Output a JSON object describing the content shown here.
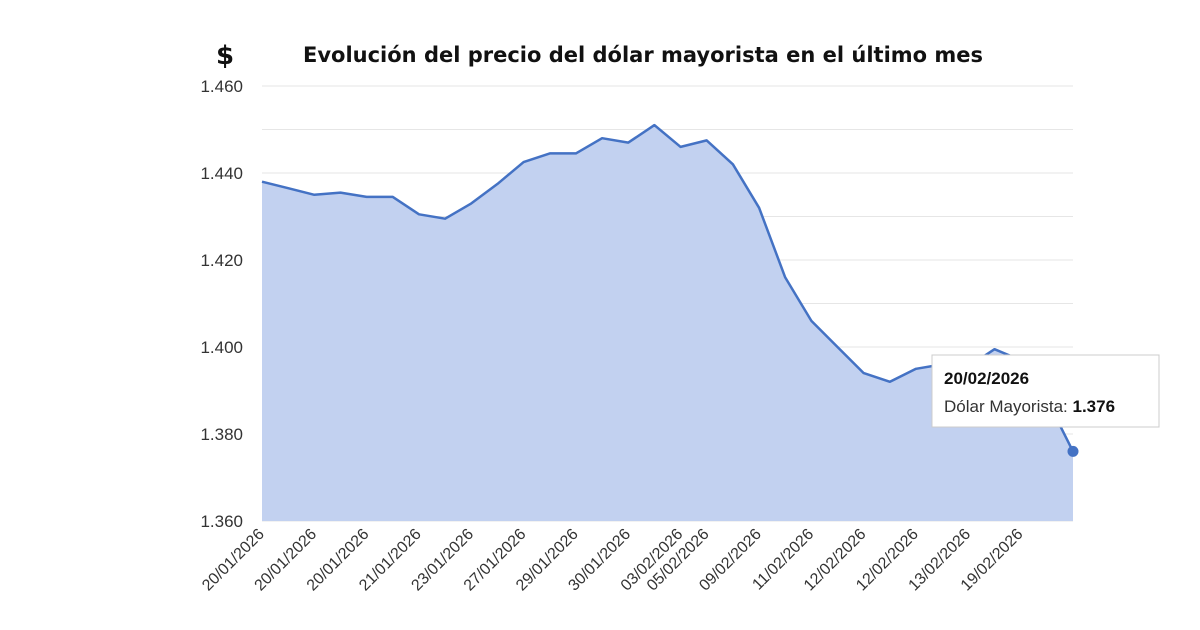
{
  "header": {
    "currency_symbol": "$",
    "title": "Evolución del precio del dólar mayorista en el último mes"
  },
  "colors": {
    "line": "#4472c4",
    "area": "#c2d1f0",
    "grid": "#e6e6e6",
    "tooltip_border": "#cccccc"
  },
  "chart_data": {
    "type": "area",
    "title": "Evolución del precio del dólar mayorista en el último mes",
    "xlabel": "",
    "ylabel": "",
    "ylim": [
      1360,
      1460
    ],
    "y_ticks": [
      1360,
      1380,
      1400,
      1420,
      1440,
      1460
    ],
    "y_tick_labels": [
      "1.360",
      "1.380",
      "1.400",
      "1.420",
      "1.440",
      "1.460"
    ],
    "x_tick_labels": [
      "20/01/2026",
      "20/01/2026",
      "20/01/2026",
      "21/01/2026",
      "23/01/2026",
      "27/01/2026",
      "29/01/2026",
      "30/01/2026",
      "03/02/2026",
      "05/02/2026",
      "09/02/2026",
      "11/02/2026",
      "12/02/2026",
      "12/02/2026",
      "13/02/2026",
      "19/02/2026"
    ],
    "grid": true,
    "legend": "none",
    "series": [
      {
        "name": "Dólar Mayorista",
        "values": [
          1438,
          1436.5,
          1435,
          1435.5,
          1434.5,
          1434.5,
          1430.5,
          1429.5,
          1433,
          1437.5,
          1442.5,
          1444.5,
          1444.5,
          1448,
          1447,
          1451,
          1446,
          1447.5,
          1442,
          1432,
          1416,
          1406,
          1400,
          1394,
          1392,
          1395,
          1396,
          1395.5,
          1399.5,
          1397,
          1388,
          1376
        ]
      }
    ],
    "tooltip": {
      "date": "20/02/2026",
      "label": "Dólar Mayorista: ",
      "value": "1.376"
    }
  }
}
